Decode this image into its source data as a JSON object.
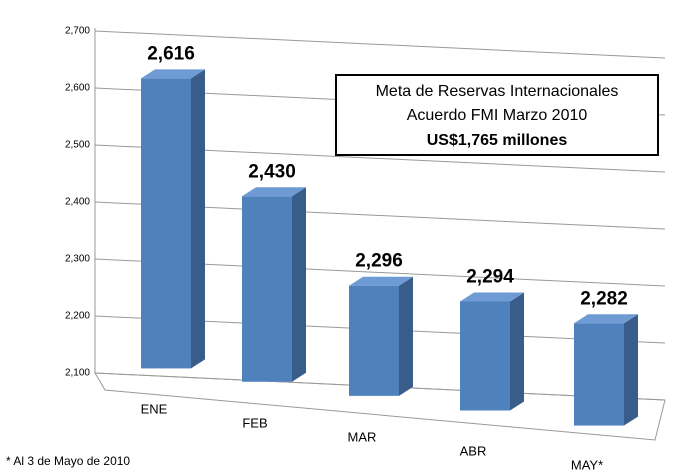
{
  "chart_data": {
    "type": "bar3d",
    "categories": [
      "ENE",
      "FEB",
      "MAR",
      "ABR",
      "MAY*"
    ],
    "values": [
      2616,
      2430,
      2296,
      2294,
      2282
    ],
    "value_labels": [
      "2,616",
      "2,430",
      "2,296",
      "2,294",
      "2,282"
    ],
    "color": "#4f81bd",
    "ylim": [
      2100,
      2700
    ],
    "yticks": [
      {
        "value": 2100,
        "label": "2,100"
      },
      {
        "value": 2200,
        "label": "2,200"
      },
      {
        "value": 2300,
        "label": "2,300"
      },
      {
        "value": 2400,
        "label": "2,400"
      },
      {
        "value": 2500,
        "label": "2,500"
      },
      {
        "value": 2600,
        "label": "2,600"
      },
      {
        "value": 2700,
        "label": "2,700"
      }
    ],
    "grid": true,
    "annotation": [
      "Meta de Reservas Internacionales",
      "Acuerdo FMI Marzo 2010",
      "US$1,765 millones"
    ],
    "footnote": "* Al 3 de Mayo de 2010"
  }
}
